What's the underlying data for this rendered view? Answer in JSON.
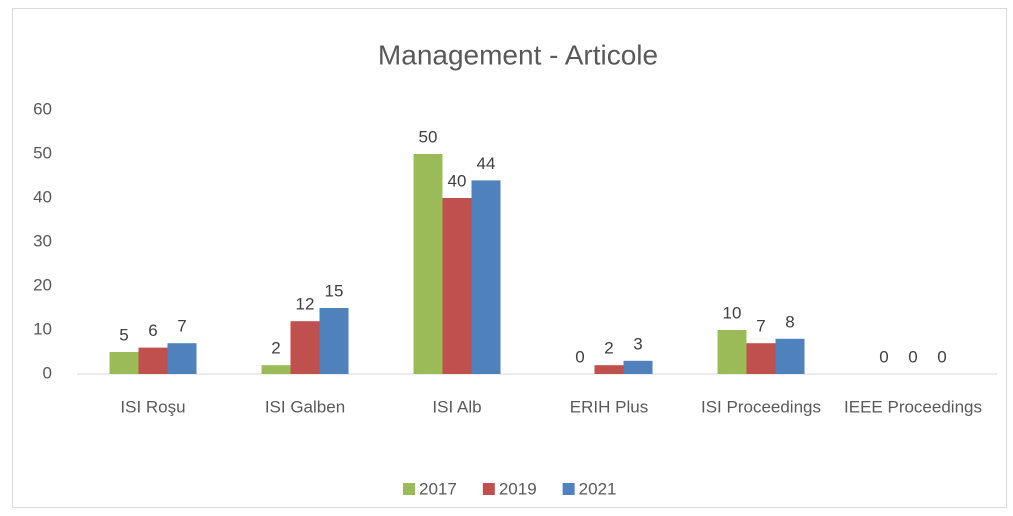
{
  "chart_data": {
    "type": "bar",
    "title": "Management - Articole",
    "categories": [
      "ISI Roşu",
      "ISI Galben",
      "ISI Alb",
      "ERIH Plus",
      "ISI Proceedings",
      "IEEE Proceedings"
    ],
    "series": [
      {
        "name": "2017",
        "color": "#9bbb59",
        "values": [
          5,
          2,
          50,
          0,
          10,
          0
        ]
      },
      {
        "name": "2019",
        "color": "#c0504d",
        "values": [
          6,
          12,
          40,
          2,
          7,
          0
        ]
      },
      {
        "name": "2021",
        "color": "#4f81bd",
        "values": [
          7,
          15,
          44,
          3,
          8,
          0
        ]
      }
    ],
    "ylim": [
      0,
      60
    ],
    "yticks": [
      0,
      10,
      20,
      30,
      40,
      50,
      60
    ],
    "grid": false,
    "legend": "bottom"
  }
}
